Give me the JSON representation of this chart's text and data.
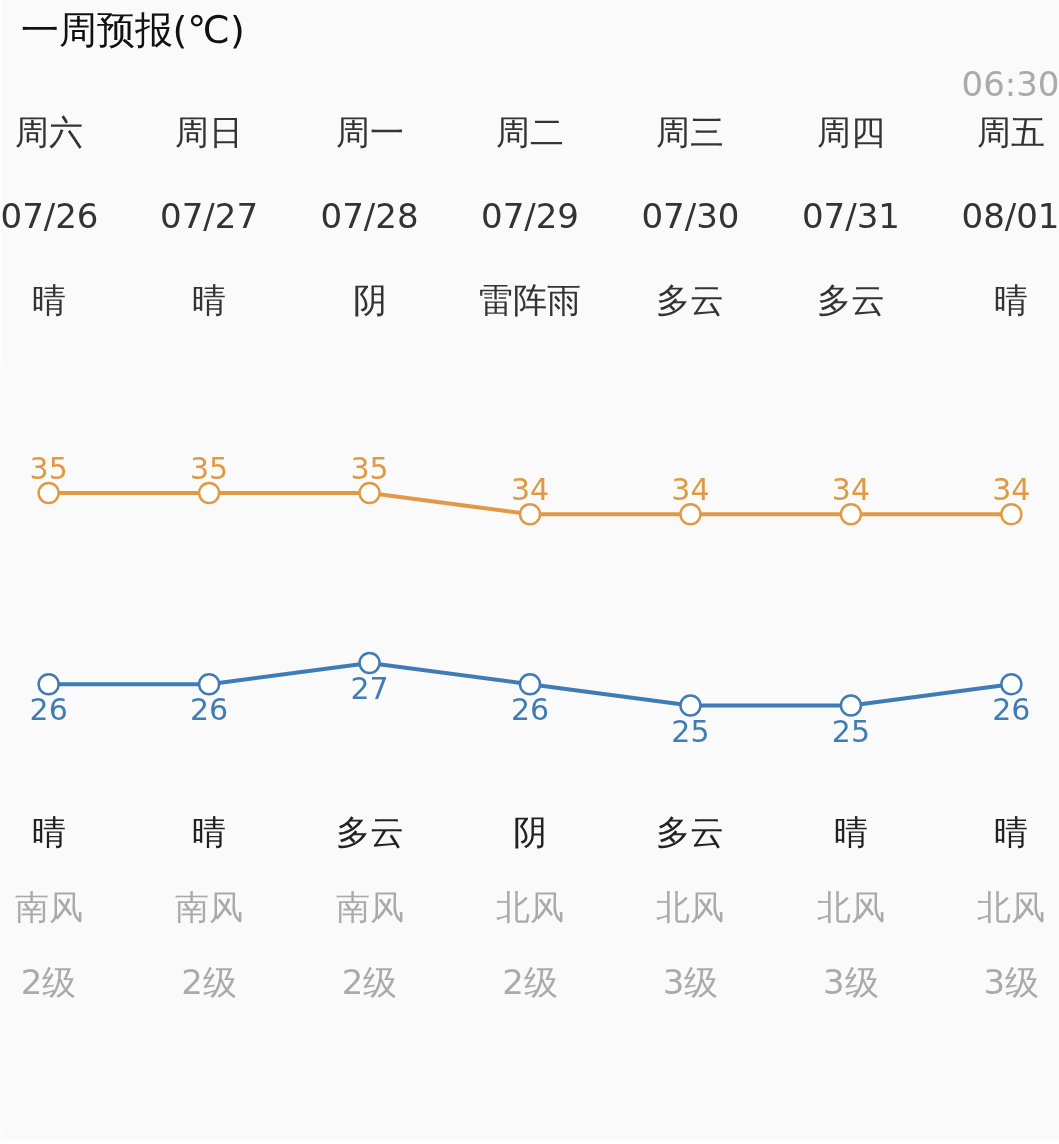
{
  "chart_data": {
    "type": "line",
    "title": "一周预报(℃)",
    "categories": [
      "周六\n07/26\n晴",
      "周日\n07/27\n晴",
      "周一\n07/28\n阴",
      "周二\n07/29\n雷阵雨",
      "周三\n07/30\n多云",
      "周四\n07/31\n多云",
      "周五\n08/01\n晴"
    ],
    "series": [
      {
        "color": "#df9a45",
        "values": [
          35,
          35,
          35,
          34,
          34,
          34,
          34
        ]
      },
      {
        "color": "#3f7bb5",
        "values": [
          26,
          26,
          27,
          26,
          25,
          25,
          26
        ]
      }
    ],
    "annotations": [
      "06:30",
      "晴",
      "晴",
      "多云",
      "阴",
      "多云",
      "晴",
      "晴",
      "南风",
      "南风",
      "南风",
      "北风",
      "北风",
      "北风",
      "北风",
      "2级",
      "2级",
      "2级",
      "2级",
      "3级",
      "3级",
      "3级"
    ],
    "data_labels": true,
    "marker": "circle",
    "line_style": "solid",
    "grid": false
  }
}
